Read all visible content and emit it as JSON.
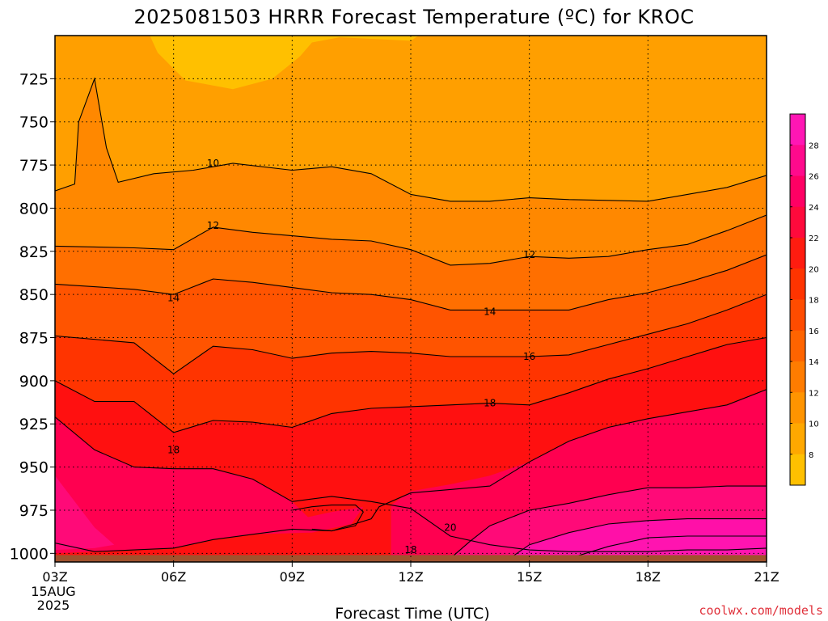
{
  "chart_data": {
    "type": "heatmap",
    "title": "2025081503 HRRR Forecast Temperature (ºC) for KROC",
    "xlabel": "Forecast Time (UTC)",
    "ylabel": "",
    "x_ticks": [
      "03Z",
      "06Z",
      "09Z",
      "12Z",
      "15Z",
      "18Z",
      "21Z"
    ],
    "x_hours": [
      3,
      6,
      9,
      12,
      15,
      18,
      21
    ],
    "x_start_date": [
      "15AUG",
      "2025"
    ],
    "y_ticks": [
      725,
      750,
      775,
      800,
      825,
      850,
      875,
      900,
      925,
      950,
      975,
      1000
    ],
    "ylim_hpa": [
      700,
      1005
    ],
    "xlim_hours": [
      3,
      21
    ],
    "grid": "dotted",
    "colorbar": {
      "ticks": [
        8,
        10,
        12,
        14,
        16,
        18,
        20,
        22,
        24,
        26,
        28
      ],
      "colors": [
        "#ffc000",
        "#ffa800",
        "#ff9400",
        "#ff7c00",
        "#ff6400",
        "#ff4c00",
        "#ff3400",
        "#ff1c10",
        "#ff0a3c",
        "#ff0064",
        "#ff0a8c",
        "#ff16b4"
      ],
      "placement": "right"
    },
    "contour_labels": [
      {
        "value": "10",
        "hour": 7.0,
        "hpa": 774
      },
      {
        "value": "12",
        "hour": 7.0,
        "hpa": 810
      },
      {
        "value": "14",
        "hour": 6.0,
        "hpa": 852
      },
      {
        "value": "18",
        "hour": 6.0,
        "hpa": 940
      },
      {
        "value": "12",
        "hour": 15.0,
        "hpa": 827
      },
      {
        "value": "14",
        "hour": 14.0,
        "hpa": 860
      },
      {
        "value": "16",
        "hour": 15.0,
        "hpa": 886
      },
      {
        "value": "18",
        "hour": 14.0,
        "hpa": 913
      },
      {
        "value": "20",
        "hour": 13.0,
        "hpa": 985
      },
      {
        "value": "18",
        "hour": 12.0,
        "hpa": 998
      }
    ],
    "isotherms": [
      {
        "value": 10,
        "points": [
          [
            3,
            790
          ],
          [
            3.5,
            786
          ],
          [
            3.6,
            750
          ],
          [
            4.0,
            725
          ],
          [
            4.3,
            765
          ],
          [
            4.6,
            785
          ],
          [
            5.5,
            780
          ],
          [
            6.5,
            778
          ],
          [
            7.5,
            774
          ],
          [
            9,
            778
          ],
          [
            10,
            776
          ],
          [
            11,
            780
          ],
          [
            12,
            792
          ],
          [
            13,
            796
          ],
          [
            14,
            796
          ],
          [
            15,
            794
          ],
          [
            16,
            795
          ],
          [
            18,
            796
          ],
          [
            19,
            792
          ],
          [
            20,
            788
          ],
          [
            21,
            781
          ]
        ]
      },
      {
        "value": 12,
        "points": [
          [
            3,
            822
          ],
          [
            5,
            823
          ],
          [
            6,
            824
          ],
          [
            7,
            811
          ],
          [
            8,
            814
          ],
          [
            9,
            816
          ],
          [
            10,
            818
          ],
          [
            11,
            819
          ],
          [
            12,
            824
          ],
          [
            13,
            833
          ],
          [
            14,
            832
          ],
          [
            15,
            828
          ],
          [
            16,
            829
          ],
          [
            17,
            828
          ],
          [
            18,
            824
          ],
          [
            19,
            821
          ],
          [
            20,
            813
          ],
          [
            21,
            804
          ]
        ]
      },
      {
        "value": 14,
        "points": [
          [
            3,
            844
          ],
          [
            5,
            847
          ],
          [
            6,
            850
          ],
          [
            7,
            841
          ],
          [
            8,
            843
          ],
          [
            9,
            846
          ],
          [
            10,
            849
          ],
          [
            11,
            850
          ],
          [
            12,
            853
          ],
          [
            13,
            859
          ],
          [
            14,
            859
          ],
          [
            15,
            859
          ],
          [
            16,
            859
          ],
          [
            17,
            853
          ],
          [
            18,
            849
          ],
          [
            19,
            843
          ],
          [
            20,
            836
          ],
          [
            21,
            827
          ]
        ]
      },
      {
        "value": 16,
        "points": [
          [
            3,
            874
          ],
          [
            5,
            878
          ],
          [
            6,
            896
          ],
          [
            7,
            880
          ],
          [
            8,
            882
          ],
          [
            9,
            887
          ],
          [
            10,
            884
          ],
          [
            11,
            883
          ],
          [
            12,
            884
          ],
          [
            13,
            886
          ],
          [
            14,
            886
          ],
          [
            15,
            886
          ],
          [
            16,
            885
          ],
          [
            17,
            879
          ],
          [
            18,
            873
          ],
          [
            19,
            867
          ],
          [
            20,
            859
          ],
          [
            21,
            850
          ]
        ]
      },
      {
        "value": 18,
        "points": [
          [
            3,
            900
          ],
          [
            4,
            912
          ],
          [
            5,
            912
          ],
          [
            6,
            930
          ],
          [
            7,
            923
          ],
          [
            8,
            924
          ],
          [
            9,
            927
          ],
          [
            10,
            919
          ],
          [
            11,
            916
          ],
          [
            12,
            915
          ],
          [
            13,
            914
          ],
          [
            14,
            913
          ],
          [
            15,
            914
          ],
          [
            16,
            907
          ],
          [
            17,
            899
          ],
          [
            18,
            893
          ],
          [
            19,
            886
          ],
          [
            20,
            879
          ],
          [
            21,
            875
          ]
        ]
      },
      {
        "value": 18,
        "points": [
          [
            3,
            921
          ],
          [
            4,
            940
          ],
          [
            5,
            950
          ],
          [
            6,
            951
          ],
          [
            7,
            951
          ],
          [
            8,
            957
          ],
          [
            9,
            970
          ],
          [
            10,
            967
          ],
          [
            11,
            970
          ],
          [
            12,
            974
          ],
          [
            13,
            990
          ],
          [
            14,
            995
          ],
          [
            15,
            998
          ],
          [
            16,
            999
          ],
          [
            17,
            999
          ],
          [
            18,
            999
          ],
          [
            19,
            998
          ],
          [
            20,
            998
          ],
          [
            21,
            997
          ]
        ]
      },
      {
        "value": 20,
        "points": [
          [
            3,
            994
          ],
          [
            4,
            999
          ],
          [
            5,
            998
          ],
          [
            6,
            997
          ],
          [
            7,
            992
          ],
          [
            8,
            989
          ],
          [
            9,
            986
          ],
          [
            10,
            987
          ],
          [
            11,
            980
          ],
          [
            11.2,
            973
          ],
          [
            12,
            965
          ],
          [
            13,
            963
          ],
          [
            14,
            961
          ],
          [
            15,
            947
          ],
          [
            16,
            935
          ],
          [
            17,
            927
          ],
          [
            18,
            922
          ],
          [
            19,
            918
          ],
          [
            20,
            914
          ],
          [
            21,
            905
          ]
        ]
      },
      {
        "value": 22,
        "points": [
          [
            13,
            1003
          ],
          [
            13.5,
            993
          ],
          [
            14,
            984
          ],
          [
            15,
            975
          ],
          [
            16,
            971
          ],
          [
            17,
            966
          ],
          [
            18,
            962
          ],
          [
            19,
            962
          ],
          [
            20,
            961
          ],
          [
            21,
            961
          ]
        ]
      },
      {
        "value": 24,
        "points": [
          [
            14.5,
            1003
          ],
          [
            15,
            995
          ],
          [
            16,
            988
          ],
          [
            17,
            983
          ],
          [
            18,
            981
          ],
          [
            19,
            980
          ],
          [
            20,
            980
          ],
          [
            21,
            980
          ]
        ]
      },
      {
        "value": 26,
        "points": [
          [
            16,
            1003
          ],
          [
            17,
            996
          ],
          [
            18,
            991
          ],
          [
            19,
            990
          ],
          [
            20,
            990
          ],
          [
            21,
            990
          ]
        ]
      }
    ],
    "surface_ground_hpa": 1001,
    "color_bands": [
      {
        "range": "8-10",
        "color": "#ffc000"
      },
      {
        "range": "10-12",
        "color": "#ff9f00"
      },
      {
        "range": "12-14",
        "color": "#ff8800"
      },
      {
        "range": "14-16",
        "color": "#ff6f00"
      },
      {
        "range": "16-18",
        "color": "#ff5400"
      },
      {
        "range": "18-20",
        "color": "#ff3400"
      },
      {
        "range": "20-22",
        "color": "#ff1010"
      },
      {
        "range": "22-24",
        "color": "#ff0050"
      },
      {
        "range": "24-26",
        "color": "#ff0a78"
      },
      {
        "range": "26-28",
        "color": "#ff10a8"
      }
    ]
  },
  "credit": "coolwx.com/models"
}
